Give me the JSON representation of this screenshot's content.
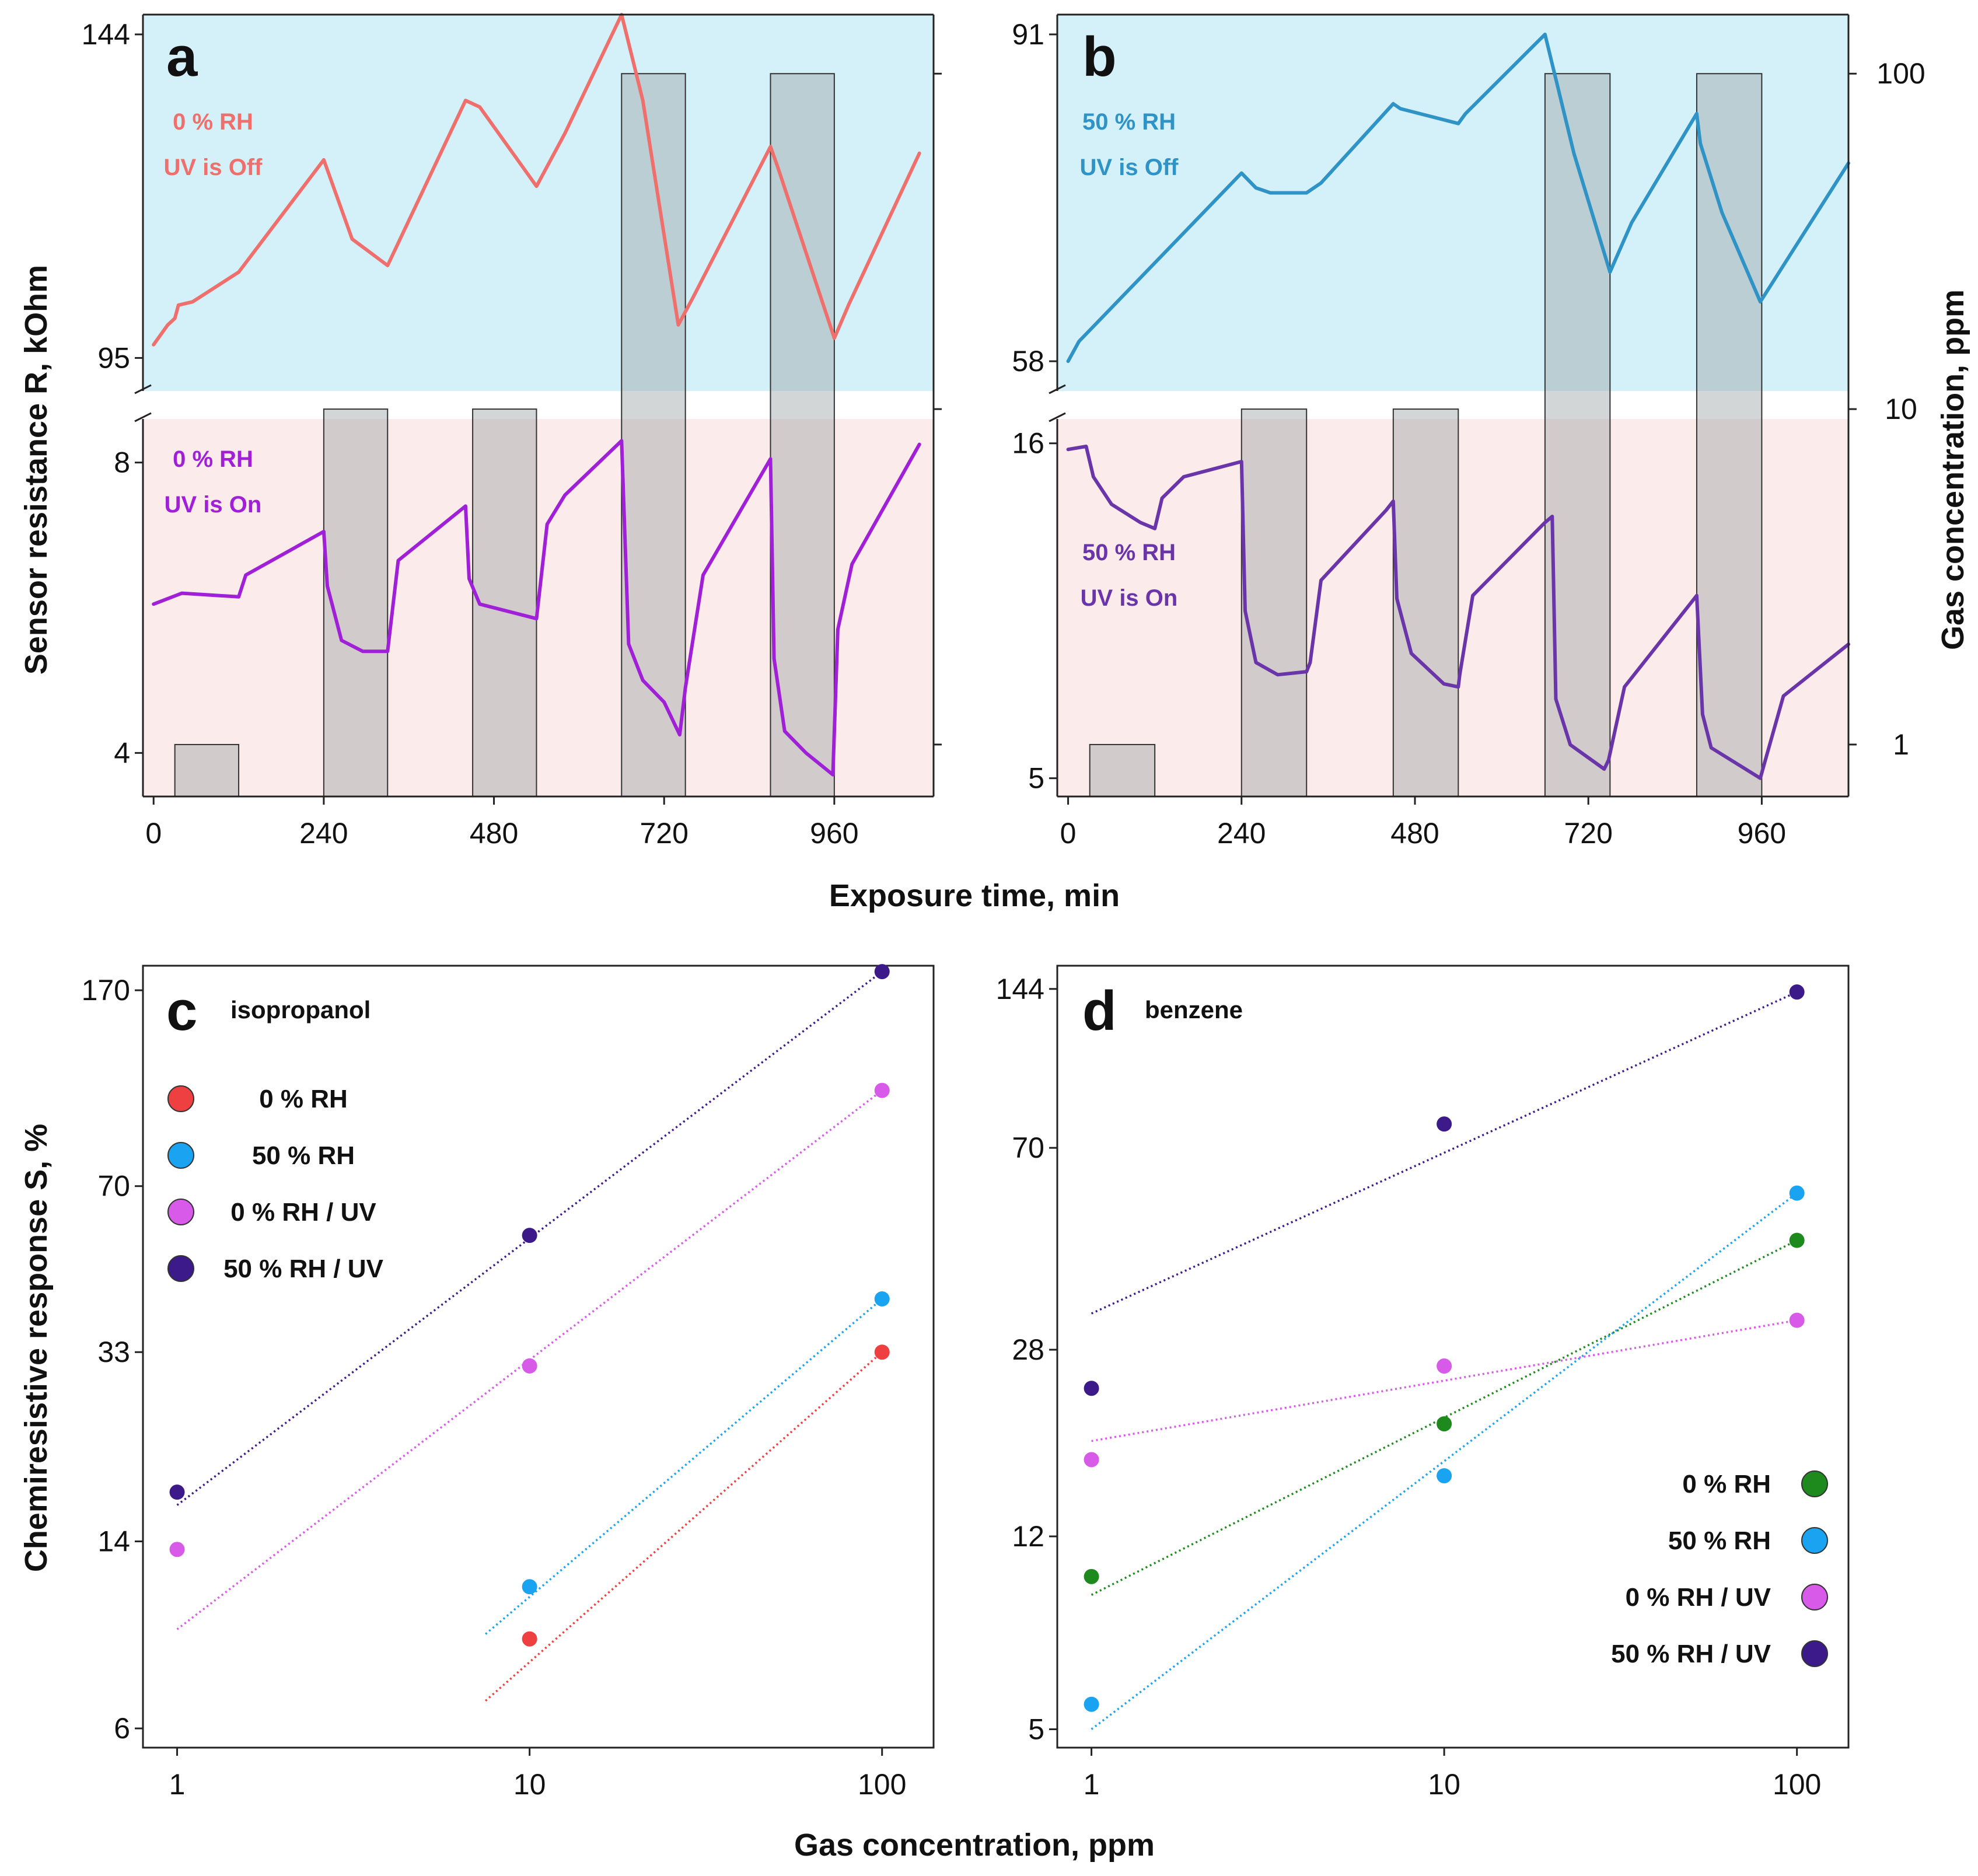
{
  "figure_labels": {
    "y_left_top": "Sensor resistance R, kOhm",
    "y_right_top": "Gas concentration, ppm",
    "x_top": "Exposure time, min",
    "y_left_bottom": "Chemiresistive response S, %",
    "x_bottom": "Gas concentration, ppm"
  },
  "colors": {
    "upper_bg": "#d4f1fa",
    "lower_bg": "#fcebeb",
    "pulse_fill": "#9ea3a6",
    "red": "#ef6f6c",
    "blue": "#2f93c6",
    "magenta": "#a020d8",
    "violet": "#6a35a8",
    "c_red": "#ee4040",
    "c_blue": "#1aa3f0",
    "c_magenta": "#d85ae8",
    "c_purple": "#3d1a8a",
    "d_green": "#1e8a1e",
    "d_blue": "#1aa3f0",
    "d_magenta": "#d85ae8",
    "d_purple": "#3d1a8a"
  },
  "chart_data": [
    {
      "id": "a",
      "panel": "a",
      "type": "line",
      "xlabel": "Exposure time, min",
      "ylabel": "Sensor resistance R, kOhm",
      "y2label": "Gas concentration, ppm",
      "x_range": [
        -15,
        1100
      ],
      "x_ticks": [
        "0",
        "240",
        "480",
        "720",
        "960"
      ],
      "x_tick_values": [
        0,
        240,
        480,
        720,
        960
      ],
      "upper": {
        "y_range": [
          90,
          147
        ],
        "y_ticks": [
          "95",
          "144"
        ],
        "y_tick_values": [
          95,
          144
        ],
        "label_rh": "0 % RH",
        "label_uv": "UV is Off",
        "series": {
          "name": "0 % RH, UV is Off",
          "x": [
            0,
            20,
            30,
            35,
            55,
            120,
            240,
            280,
            330,
            440,
            460,
            540,
            580,
            660,
            690,
            740,
            760,
            870,
            880,
            960,
            980,
            1080
          ],
          "y": [
            97,
            100,
            101,
            103,
            103.5,
            108,
            125,
            113,
            109,
            134,
            133,
            121,
            129,
            147,
            134,
            100,
            104,
            127,
            124,
            98,
            103,
            126
          ]
        }
      },
      "lower": {
        "y_range": [
          3.4,
          8.6
        ],
        "y_ticks": [
          "4",
          "8"
        ],
        "y_tick_values": [
          4,
          8
        ],
        "label_rh": "0 % RH",
        "label_uv": "UV is On",
        "series": {
          "name": "0 % RH, UV is On",
          "x": [
            0,
            40,
            120,
            130,
            240,
            245,
            265,
            295,
            330,
            345,
            440,
            445,
            460,
            540,
            555,
            580,
            660,
            670,
            690,
            720,
            742,
            750,
            775,
            870,
            875,
            890,
            920,
            958,
            965,
            985,
            1080
          ],
          "y": [
            6.05,
            6.2,
            6.15,
            6.45,
            7.05,
            6.3,
            5.55,
            5.4,
            5.4,
            6.65,
            7.4,
            6.4,
            6.05,
            5.85,
            7.15,
            7.55,
            8.3,
            5.5,
            5.0,
            4.7,
            4.25,
            4.9,
            6.45,
            8.05,
            5.3,
            4.3,
            4.0,
            3.7,
            5.7,
            6.6,
            8.25
          ]
        }
      },
      "gas_pulses": [
        {
          "start": 30,
          "end": 120,
          "conc": 1
        },
        {
          "start": 240,
          "end": 330,
          "conc": 10
        },
        {
          "start": 450,
          "end": 540,
          "conc": 10
        },
        {
          "start": 660,
          "end": 750,
          "conc": 100
        },
        {
          "start": 870,
          "end": 960,
          "conc": 100
        }
      ]
    },
    {
      "id": "b",
      "panel": "b",
      "type": "line",
      "xlabel": "Exposure time, min",
      "ylabel": "Sensor resistance R, kOhm",
      "y2label": "Gas concentration, ppm",
      "x_range": [
        -15,
        1080
      ],
      "x_ticks": [
        "0",
        "240",
        "480",
        "720",
        "960"
      ],
      "x_tick_values": [
        0,
        240,
        480,
        720,
        960
      ],
      "y2_ticks": [
        "1",
        "10",
        "100"
      ],
      "y2_tick_values": [
        1,
        10,
        100
      ],
      "y2_range": [
        0.7,
        150
      ],
      "upper": {
        "y_range": [
          55,
          93
        ],
        "y_ticks": [
          "58",
          "91"
        ],
        "y_tick_values": [
          58,
          91
        ],
        "label_rh": "50 % RH",
        "label_uv": "UV is Off",
        "series": {
          "name": "50 % RH, UV is Off",
          "x": [
            0,
            15,
            240,
            260,
            280,
            330,
            350,
            450,
            460,
            540,
            550,
            660,
            670,
            700,
            750,
            780,
            870,
            875,
            905,
            958,
            1080
          ],
          "y": [
            58,
            60,
            77,
            75.5,
            75,
            75,
            76,
            84,
            83.5,
            82,
            83,
            91,
            88,
            79,
            67,
            72,
            83,
            80,
            73,
            64,
            78
          ]
        }
      },
      "lower": {
        "y_range": [
          4.4,
          16.8
        ],
        "y_ticks": [
          "5",
          "16"
        ],
        "y_tick_values": [
          5,
          16
        ],
        "label_rh": "50 % RH",
        "label_uv": "UV is On",
        "series": {
          "name": "50 % RH, UV is On",
          "x": [
            0,
            25,
            35,
            60,
            100,
            120,
            130,
            160,
            240,
            245,
            260,
            290,
            330,
            335,
            350,
            440,
            450,
            455,
            475,
            520,
            540,
            542,
            560,
            660,
            670,
            675,
            695,
            742,
            748,
            770,
            870,
            878,
            890,
            958,
            965,
            990,
            1080
          ],
          "y": [
            15.8,
            15.9,
            14.9,
            14.0,
            13.4,
            13.2,
            14.2,
            14.9,
            15.4,
            10.5,
            8.8,
            8.4,
            8.5,
            8.8,
            11.5,
            13.8,
            14.1,
            10.9,
            9.1,
            8.1,
            8.0,
            8.4,
            11.0,
            13.4,
            13.6,
            7.6,
            6.1,
            5.3,
            5.6,
            8.0,
            11.0,
            7.1,
            6.0,
            5.0,
            5.6,
            7.7,
            9.4
          ]
        }
      },
      "gas_pulses": [
        {
          "start": 30,
          "end": 120,
          "conc": 1
        },
        {
          "start": 240,
          "end": 330,
          "conc": 10
        },
        {
          "start": 450,
          "end": 540,
          "conc": 10
        },
        {
          "start": 660,
          "end": 750,
          "conc": 100
        },
        {
          "start": 870,
          "end": 960,
          "conc": 100
        }
      ]
    },
    {
      "id": "c",
      "panel": "c",
      "type": "scatter",
      "title": "isopropanol",
      "xscale": "log",
      "yscale": "log",
      "x_range": [
        0.8,
        140
      ],
      "y_range": [
        5.5,
        190
      ],
      "x_ticks": [
        "1",
        "10",
        "100"
      ],
      "x_tick_values": [
        1,
        10,
        100
      ],
      "y_ticks": [
        "6",
        "14",
        "33",
        "70",
        "170"
      ],
      "y_tick_values": [
        6,
        14,
        33,
        70,
        170
      ],
      "xlabel": "Gas concentration, ppm",
      "ylabel": "Chemiresistive response S, %",
      "legend_position": "top-left",
      "series": [
        {
          "name": "0 % RH",
          "x": [
            10,
            100
          ],
          "y": [
            9,
            33
          ],
          "color": "c_red",
          "fit": {
            "x": [
              7.5,
              100
            ],
            "y": [
              6.8,
              33
            ]
          }
        },
        {
          "name": "50 % RH",
          "x": [
            10,
            100
          ],
          "y": [
            11.4,
            42
          ],
          "color": "c_blue",
          "fit": {
            "x": [
              7.5,
              100
            ],
            "y": [
              9.2,
              42
            ]
          }
        },
        {
          "name": "0 % RH / UV",
          "x": [
            1,
            10,
            100
          ],
          "y": [
            13.5,
            31,
            108
          ],
          "color": "c_magenta",
          "fit": {
            "x": [
              1,
              100
            ],
            "y": [
              9.4,
              108
            ]
          }
        },
        {
          "name": "50 % RH / UV",
          "x": [
            1,
            10,
            100
          ],
          "y": [
            17.5,
            56,
            185
          ],
          "color": "c_purple",
          "fit": {
            "x": [
              1,
              100
            ],
            "y": [
              16.5,
              185
            ]
          }
        }
      ]
    },
    {
      "id": "d",
      "panel": "d",
      "type": "scatter",
      "title": "benzene",
      "xscale": "log",
      "yscale": "log",
      "x_range": [
        0.8,
        140
      ],
      "y_range": [
        4.6,
        160
      ],
      "x_ticks": [
        "1",
        "10",
        "100"
      ],
      "x_tick_values": [
        1,
        10,
        100
      ],
      "y_ticks": [
        "5",
        "12",
        "28",
        "70",
        "144"
      ],
      "y_tick_values": [
        5,
        12,
        28,
        70,
        144
      ],
      "xlabel": "Gas concentration, ppm",
      "ylabel": "",
      "legend_position": "bottom-right",
      "series": [
        {
          "name": "0 % RH",
          "x": [
            1,
            10,
            100
          ],
          "y": [
            10,
            20,
            46
          ],
          "color": "d_green",
          "fit": {
            "x": [
              1,
              100
            ],
            "y": [
              9.2,
              46
            ]
          }
        },
        {
          "name": "50 % RH",
          "x": [
            1,
            10,
            100
          ],
          "y": [
            5.6,
            15.8,
            57
          ],
          "color": "d_blue",
          "fit": {
            "x": [
              1,
              100
            ],
            "y": [
              5.0,
              57
            ]
          }
        },
        {
          "name": "0 % RH / UV",
          "x": [
            1,
            10,
            100
          ],
          "y": [
            17,
            26,
            32
          ],
          "color": "d_magenta",
          "fit": {
            "x": [
              1,
              100
            ],
            "y": [
              18.5,
              32
            ]
          }
        },
        {
          "name": "50 % RH / UV",
          "x": [
            1,
            10,
            100
          ],
          "y": [
            23.5,
            78,
            142
          ],
          "color": "d_purple",
          "fit": {
            "x": [
              1,
              100
            ],
            "y": [
              33,
              142
            ]
          }
        }
      ]
    }
  ]
}
